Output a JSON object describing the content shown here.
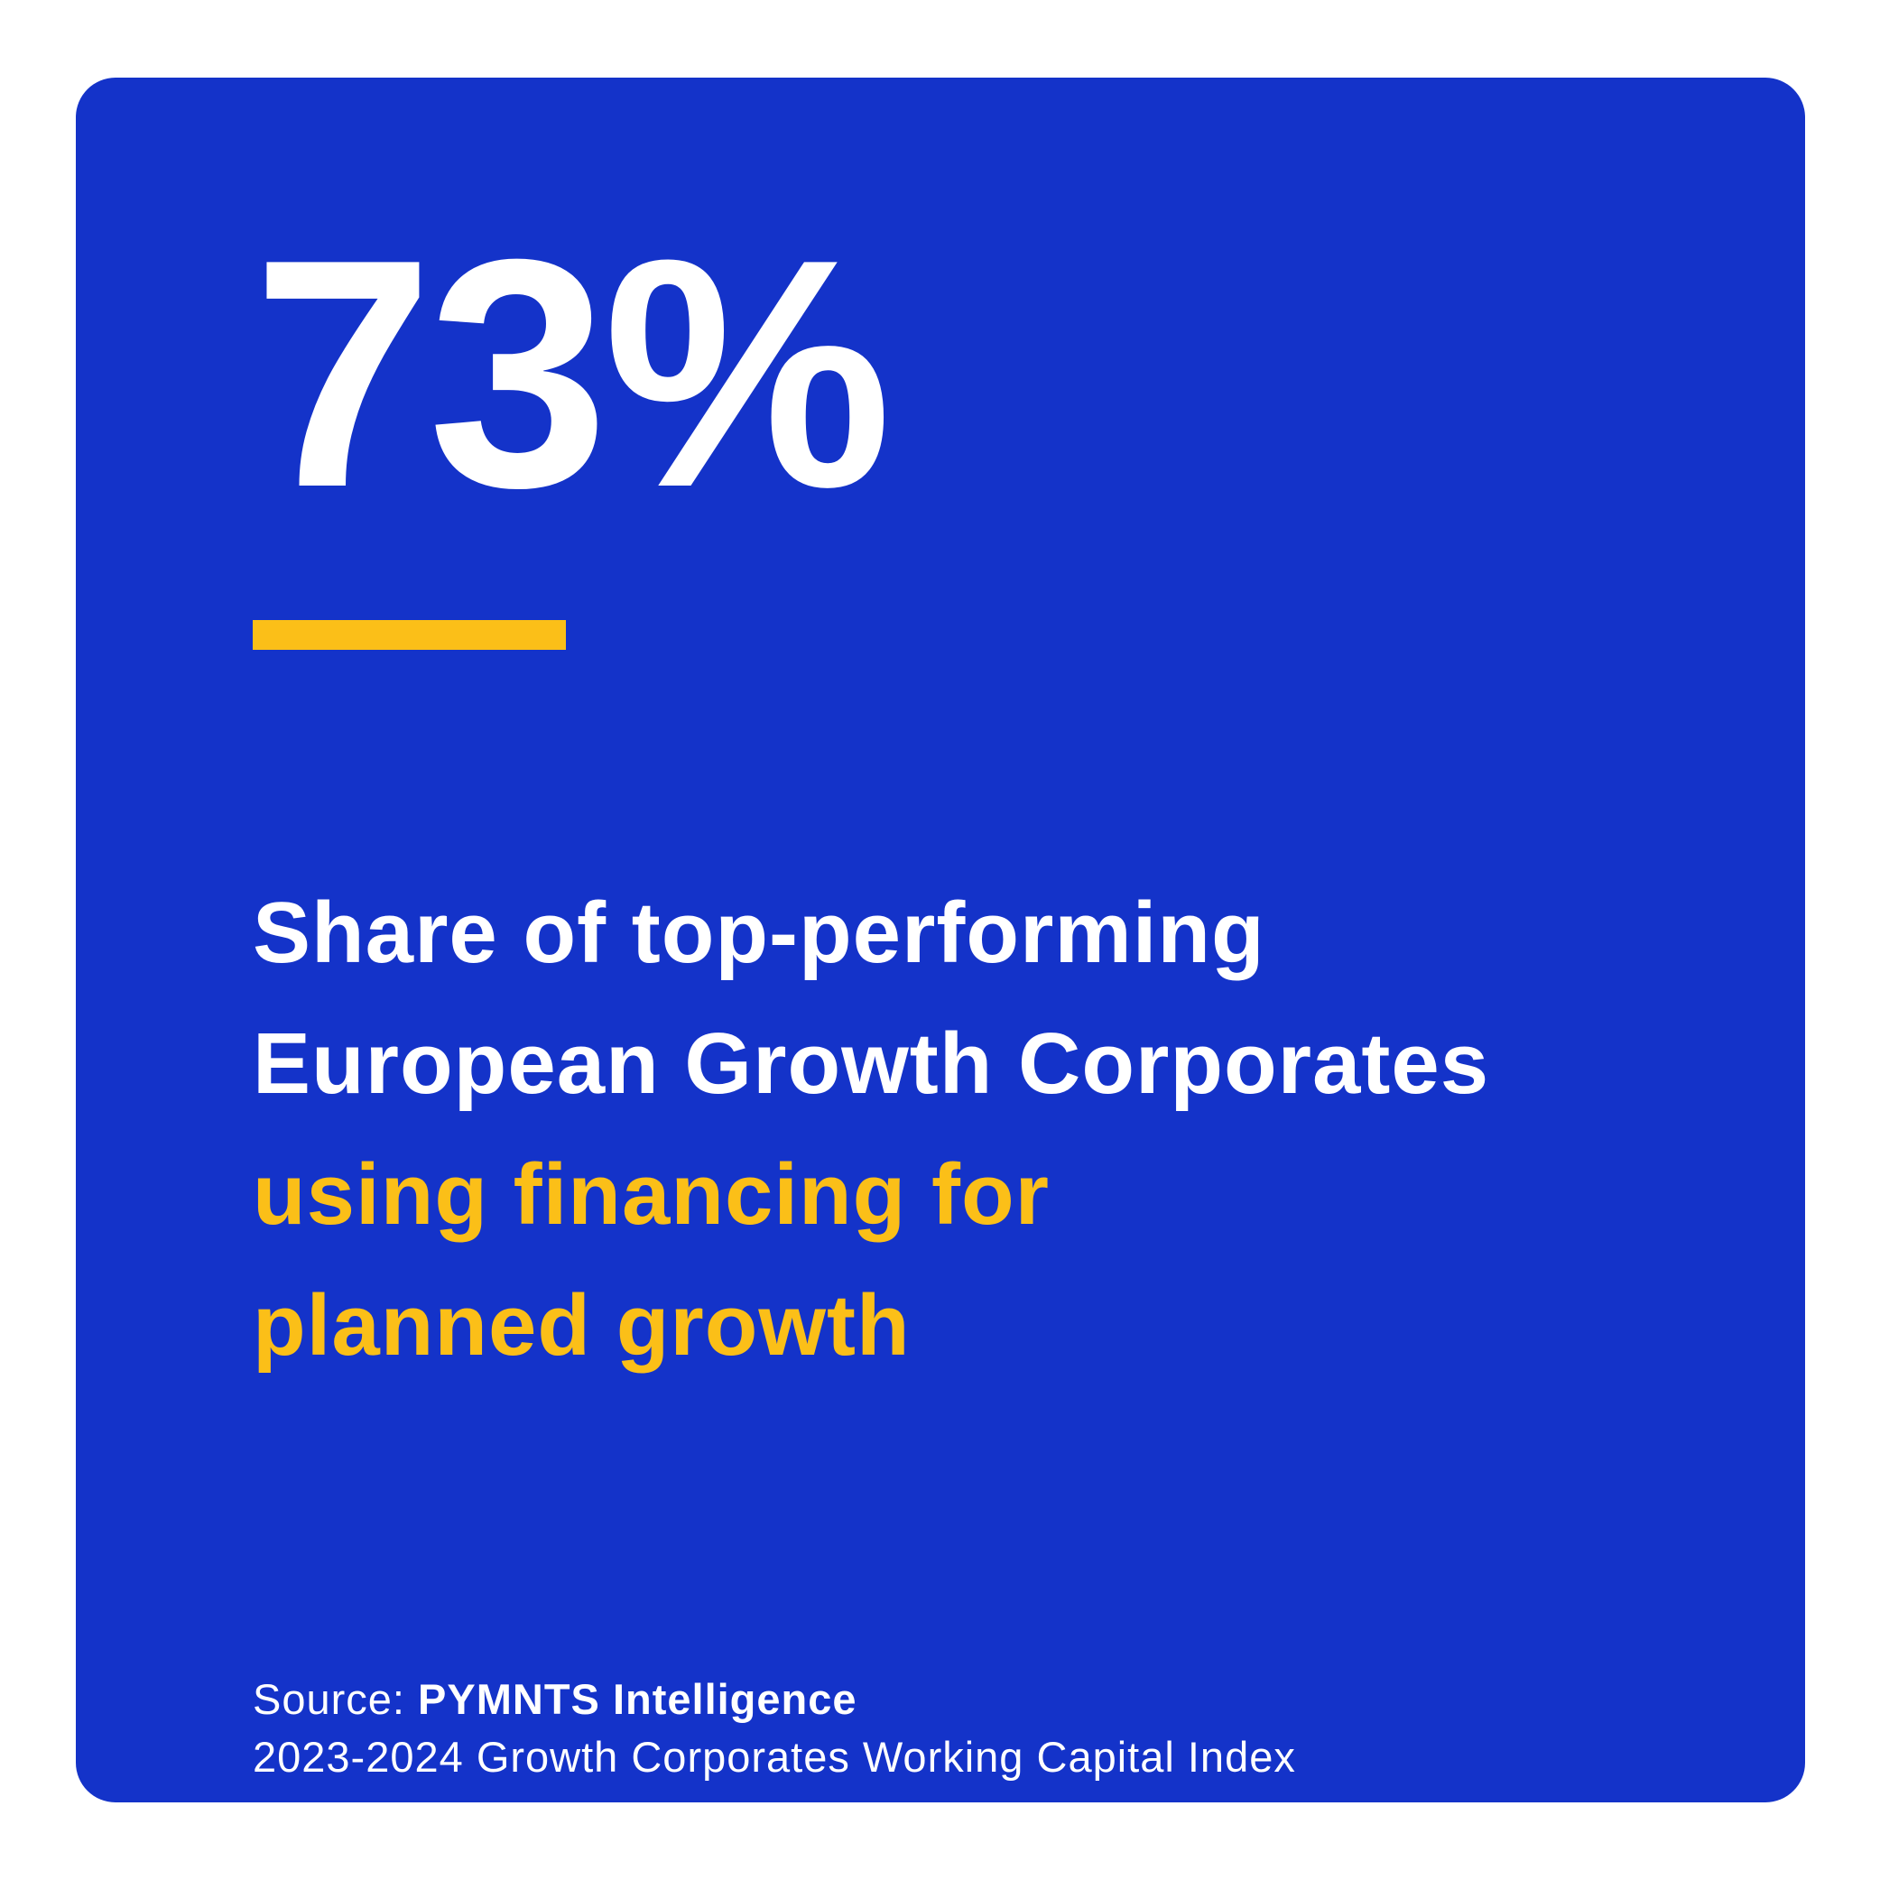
{
  "stat": {
    "value": "73%"
  },
  "headline": {
    "line1": "Share of top-performing",
    "line2": "European Growth Corporates",
    "line3": "using financing for",
    "line4": "planned growth"
  },
  "source": {
    "prefix": "Source: ",
    "org": "PYMNTS Intelligence",
    "report": "2023-2024 Growth Corporates Working Capital Index"
  },
  "colors": {
    "card_background": "#1433C9",
    "accent": "#FBBF18",
    "text": "#FFFFFF"
  }
}
